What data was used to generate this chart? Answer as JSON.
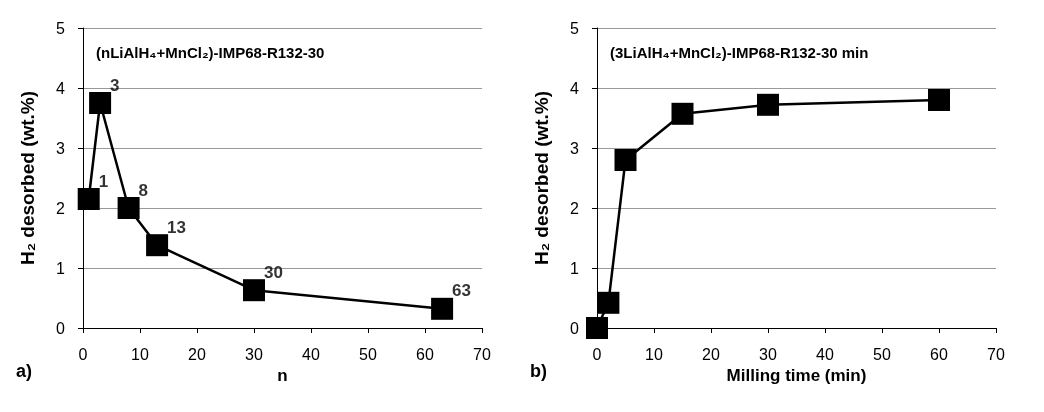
{
  "chart_data": [
    {
      "type": "line",
      "title": "(nLiAlH₄+MnCl₂)-IMP68-R132-30",
      "xlabel": "n",
      "ylabel": "H₂ desorbed (wt.%)",
      "x": [
        1,
        3,
        8,
        13,
        30,
        63
      ],
      "series": [
        {
          "color": "#000000",
          "values": [
            2.15,
            3.75,
            2.0,
            1.38,
            0.63,
            0.32
          ]
        }
      ],
      "xlim": [
        0,
        70
      ],
      "xticks": [
        0,
        10,
        20,
        30,
        40,
        50,
        60,
        70
      ],
      "ylim": [
        0,
        5
      ],
      "yticks": [
        0,
        1,
        2,
        3,
        4,
        5
      ],
      "grid": "y",
      "marker": "square",
      "line_style": "solid",
      "annotations": [
        "a)",
        {
          "text": "1",
          "x": 1,
          "y": 2.15
        },
        {
          "text": "3",
          "x": 3,
          "y": 3.75
        },
        {
          "text": "8",
          "x": 8,
          "y": 2.0
        },
        {
          "text": "13",
          "x": 13,
          "y": 1.38
        },
        {
          "text": "30",
          "x": 30,
          "y": 0.63
        },
        {
          "text": "63",
          "x": 63,
          "y": 0.32
        }
      ]
    },
    {
      "type": "line",
      "title": "(3LiAlH₄+MnCl₂)-IMP68-R132-30 min",
      "xlabel": "Milling time (min)",
      "ylabel": "H₂ desorbed (wt.%)",
      "x": [
        0,
        2,
        5,
        15,
        30,
        60
      ],
      "series": [
        {
          "color": "#000000",
          "values": [
            0,
            0.42,
            2.8,
            3.57,
            3.72,
            3.8
          ]
        }
      ],
      "xlim": [
        0,
        70
      ],
      "xticks": [
        0,
        10,
        20,
        30,
        40,
        50,
        60,
        70
      ],
      "ylim": [
        0,
        5
      ],
      "yticks": [
        0,
        1,
        2,
        3,
        4,
        5
      ],
      "grid": "y",
      "marker": "square",
      "line_style": "solid",
      "annotations": [
        "b)"
      ]
    }
  ]
}
